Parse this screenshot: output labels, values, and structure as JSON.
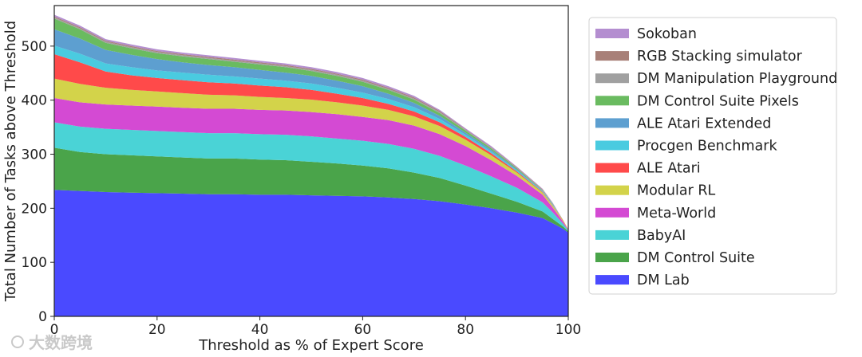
{
  "chart_data": {
    "type": "area",
    "stacked": true,
    "title": "",
    "xlabel": "Threshold as % of Expert Score",
    "ylabel": "Total Number of Tasks above Threshold",
    "xlim": [
      0,
      100
    ],
    "ylim": [
      0,
      575
    ],
    "xticks": [
      0,
      20,
      40,
      60,
      80,
      100
    ],
    "yticks": [
      0,
      100,
      200,
      300,
      400,
      500
    ],
    "x": [
      0,
      5,
      10,
      15,
      20,
      25,
      30,
      35,
      40,
      45,
      50,
      55,
      60,
      65,
      70,
      75,
      80,
      85,
      90,
      95,
      97,
      99,
      100
    ],
    "series": [
      {
        "name": "DM Lab",
        "color": "#4a4aff",
        "values": [
          234,
          232,
          230,
          229,
          228,
          227,
          226,
          226,
          225,
          225,
          224,
          223,
          222,
          220,
          217,
          213,
          207,
          200,
          192,
          182,
          172,
          162,
          155
        ]
      },
      {
        "name": "DM Control Suite",
        "color": "#4aa44a",
        "values": [
          78,
          72,
          70,
          69,
          68,
          67,
          66,
          66,
          65,
          64,
          62,
          60,
          57,
          54,
          49,
          43,
          35,
          27,
          20,
          12,
          8,
          4,
          2
        ]
      },
      {
        "name": "BabyAI",
        "color": "#4ad3d6",
        "values": [
          47,
          47,
          47,
          47,
          47,
          47,
          47,
          47,
          47,
          47,
          47,
          46,
          46,
          45,
          44,
          41,
          37,
          32,
          26,
          17,
          12,
          5,
          2
        ]
      },
      {
        "name": "Meta-World",
        "color": "#d44ad3",
        "values": [
          45,
          45,
          45,
          45,
          45,
          45,
          45,
          45,
          45,
          45,
          45,
          45,
          44,
          44,
          43,
          40,
          36,
          30,
          22,
          14,
          9,
          4,
          1
        ]
      },
      {
        "name": "Modular RL",
        "color": "#d3d34a",
        "values": [
          36,
          34,
          31,
          29,
          28,
          27,
          26,
          25,
          24,
          23,
          23,
          22,
          21,
          19,
          17,
          15,
          12,
          9,
          6,
          4,
          3,
          2,
          1
        ]
      },
      {
        "name": "ALE Atari",
        "color": "#ff4a4a",
        "values": [
          45,
          40,
          30,
          27,
          25,
          24,
          23,
          22,
          21,
          20,
          18,
          16,
          14,
          11,
          9,
          7,
          5,
          4,
          2,
          1,
          1,
          1,
          0
        ]
      },
      {
        "name": "Procgen Benchmark",
        "color": "#4acbe0",
        "values": [
          16,
          16,
          15,
          15,
          14,
          14,
          14,
          13,
          13,
          12,
          12,
          11,
          10,
          9,
          8,
          6,
          4,
          3,
          2,
          1,
          1,
          0,
          0
        ]
      },
      {
        "name": "ALE Atari Extended",
        "color": "#5d9fd0",
        "values": [
          30,
          28,
          25,
          23,
          21,
          19,
          18,
          17,
          16,
          15,
          14,
          13,
          12,
          10,
          8,
          6,
          4,
          3,
          2,
          1,
          1,
          0,
          0
        ]
      },
      {
        "name": "DM Control Suite Pixels",
        "color": "#6abb60",
        "values": [
          20,
          17,
          13,
          12,
          11,
          11,
          11,
          10,
          10,
          10,
          9,
          9,
          8,
          7,
          6,
          5,
          4,
          3,
          2,
          1,
          1,
          0,
          0
        ]
      },
      {
        "name": "DM Manipulation Playground",
        "color": "#a0a0a0",
        "values": [
          2,
          2,
          2,
          2,
          2,
          2,
          2,
          2,
          2,
          2,
          2,
          2,
          2,
          2,
          2,
          2,
          1,
          1,
          1,
          1,
          1,
          0,
          0
        ]
      },
      {
        "name": "RGB Stacking simulator",
        "color": "#a88078",
        "values": [
          2,
          2,
          2,
          2,
          2,
          2,
          2,
          2,
          2,
          2,
          2,
          2,
          2,
          2,
          2,
          2,
          1,
          1,
          1,
          1,
          0,
          0,
          0
        ]
      },
      {
        "name": "Sokoban",
        "color": "#b48ed0",
        "values": [
          3,
          3,
          3,
          3,
          3,
          3,
          3,
          3,
          3,
          3,
          3,
          3,
          3,
          3,
          3,
          2,
          2,
          2,
          1,
          1,
          1,
          0,
          0
        ]
      }
    ],
    "legend_order": [
      "Sokoban",
      "RGB Stacking simulator",
      "DM Manipulation Playground",
      "DM Control Suite Pixels",
      "ALE Atari Extended",
      "Procgen Benchmark",
      "ALE Atari",
      "Modular RL",
      "Meta-World",
      "BabyAI",
      "DM Control Suite",
      "DM Lab"
    ],
    "legend_position": "right"
  },
  "watermark": "大数跨境"
}
